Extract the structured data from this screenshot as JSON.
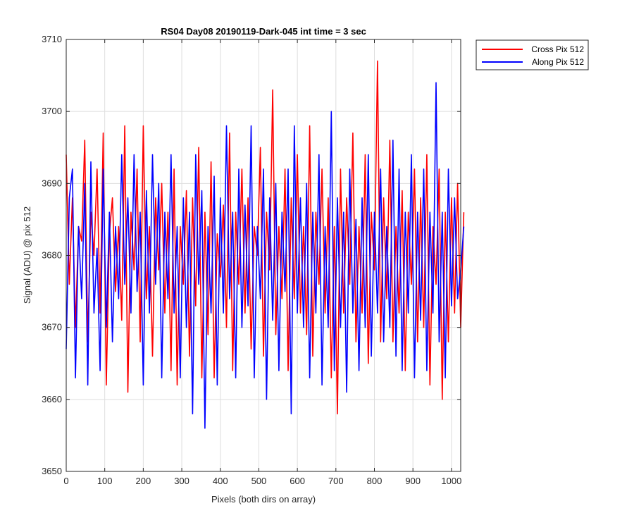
{
  "chart_data": {
    "type": "line",
    "title": "RS04 Day08 20190119-Dark-045 int time = 3 sec",
    "xlabel": "Pixels (both dirs on array)",
    "ylabel": "Signal (ADU) @ pix 512",
    "xlim": [
      0,
      1024
    ],
    "ylim": [
      3650,
      3710
    ],
    "x_ticks": [
      0,
      100,
      200,
      300,
      400,
      500,
      600,
      700,
      800,
      900,
      1000
    ],
    "y_ticks": [
      3650,
      3660,
      3670,
      3680,
      3690,
      3700,
      3710
    ],
    "grid": true,
    "legend_position": "outside-top-right",
    "x_start": 0,
    "x_step": 8,
    "series": [
      {
        "name": "Cross Pix 512",
        "color": "#ff0000",
        "values": [
          3694,
          3676,
          3688,
          3670,
          3684,
          3682,
          3696,
          3668,
          3686,
          3680,
          3692,
          3672,
          3697,
          3662,
          3683,
          3688,
          3675,
          3684,
          3671,
          3698,
          3661,
          3686,
          3678,
          3692,
          3668,
          3698,
          3674,
          3684,
          3666,
          3688,
          3678,
          3690,
          3672,
          3686,
          3664,
          3692,
          3662,
          3684,
          3676,
          3689,
          3666,
          3688,
          3673,
          3695,
          3663,
          3686,
          3669,
          3693,
          3663,
          3683,
          3677,
          3687,
          3670,
          3697,
          3664,
          3686,
          3676,
          3692,
          3672,
          3688,
          3667,
          3684,
          3680,
          3695,
          3666,
          3686,
          3678,
          3703,
          3669,
          3684,
          3674,
          3692,
          3664,
          3688,
          3674,
          3694,
          3672,
          3684,
          3669,
          3698,
          3666,
          3686,
          3676,
          3692,
          3672,
          3688,
          3663,
          3684,
          3658,
          3692,
          3672,
          3688,
          3676,
          3697,
          3668,
          3684,
          3672,
          3694,
          3665,
          3686,
          3678,
          3707,
          3668,
          3688,
          3674,
          3696,
          3668,
          3684,
          3672,
          3689,
          3664,
          3686,
          3676,
          3692,
          3668,
          3688,
          3670,
          3694,
          3662,
          3684,
          3676,
          3692,
          3660,
          3686,
          3668,
          3688,
          3672,
          3690,
          3670,
          3686
        ]
      },
      {
        "name": "Along Pix 512",
        "color": "#0000ff",
        "values": [
          3667,
          3688,
          3692,
          3663,
          3684,
          3674,
          3690,
          3662,
          3693,
          3672,
          3681,
          3664,
          3692,
          3670,
          3686,
          3668,
          3684,
          3674,
          3694,
          3676,
          3688,
          3672,
          3694,
          3675,
          3686,
          3662,
          3689,
          3672,
          3694,
          3676,
          3690,
          3663,
          3686,
          3674,
          3694,
          3672,
          3684,
          3663,
          3688,
          3670,
          3686,
          3658,
          3694,
          3676,
          3689,
          3656,
          3684,
          3672,
          3691,
          3662,
          3688,
          3672,
          3698,
          3674,
          3686,
          3663,
          3692,
          3670,
          3687,
          3673,
          3698,
          3663,
          3684,
          3674,
          3692,
          3660,
          3688,
          3671,
          3690,
          3664,
          3686,
          3675,
          3692,
          3658,
          3698,
          3672,
          3688,
          3670,
          3690,
          3663,
          3686,
          3672,
          3694,
          3662,
          3684,
          3670,
          3700,
          3664,
          3688,
          3670,
          3686,
          3661,
          3692,
          3672,
          3685,
          3664,
          3688,
          3670,
          3694,
          3666,
          3686,
          3672,
          3692,
          3668,
          3684,
          3670,
          3696,
          3666,
          3692,
          3664,
          3686,
          3672,
          3694,
          3663,
          3686,
          3671,
          3692,
          3664,
          3686,
          3672,
          3704,
          3668,
          3686,
          3663,
          3692,
          3673,
          3688,
          3674,
          3678,
          3684
        ]
      }
    ]
  }
}
